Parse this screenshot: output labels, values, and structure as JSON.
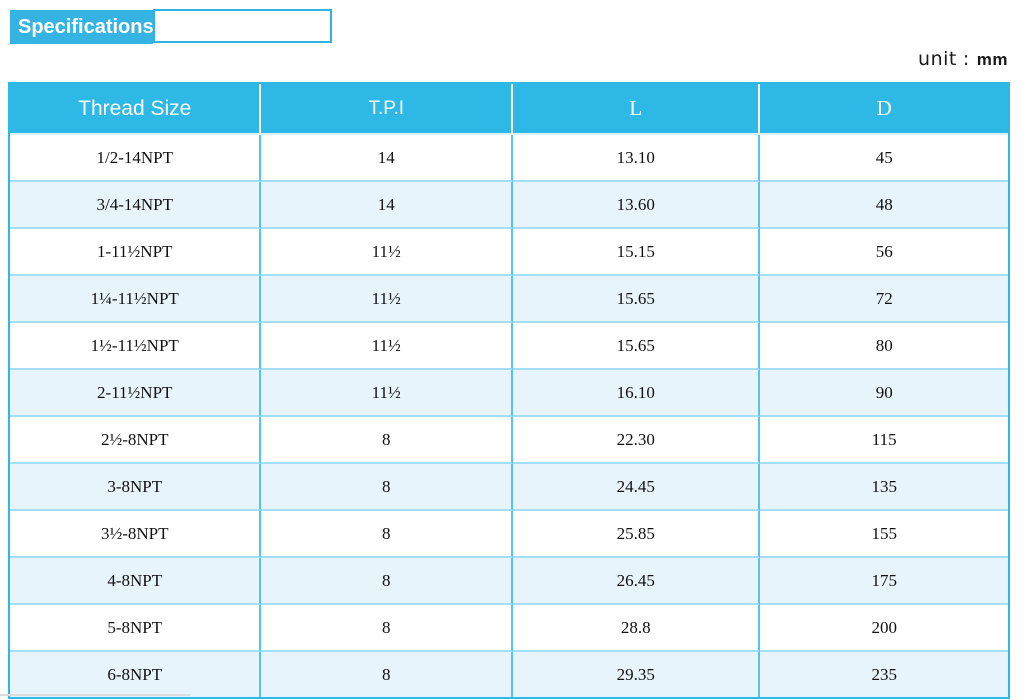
{
  "page": {
    "title": "Specifications",
    "unit_label": "unit",
    "unit_colon": ":",
    "unit_value": "mm"
  },
  "table": {
    "columns": [
      "Thread Size",
      "T.P.I",
      "L",
      "D"
    ],
    "rows": [
      [
        "1/2-14NPT",
        "14",
        "13.10",
        "45"
      ],
      [
        "3/4-14NPT",
        "14",
        "13.60",
        "48"
      ],
      [
        "1-11½NPT",
        "11½",
        "15.15",
        "56"
      ],
      [
        "1¼-11½NPT",
        "11½",
        "15.65",
        "72"
      ],
      [
        "1½-11½NPT",
        "11½",
        "15.65",
        "80"
      ],
      [
        "2-11½NPT",
        "11½",
        "16.10",
        "90"
      ],
      [
        "2½-8NPT",
        "8",
        "22.30",
        "115"
      ],
      [
        "3-8NPT",
        "8",
        "24.45",
        "135"
      ],
      [
        "3½-8NPT",
        "8",
        "25.85",
        "155"
      ],
      [
        "4-8NPT",
        "8",
        "26.45",
        "175"
      ],
      [
        "5-8NPT",
        "8",
        "28.8",
        "200"
      ],
      [
        "6-8NPT",
        "8",
        "29.35",
        "235"
      ]
    ]
  },
  "colors": {
    "header_bg": "#2eb8e6",
    "title_bg": "#35b4e4",
    "row_alt_bg": "#e7f4fb",
    "outer_border": "#2eb8e6",
    "vertical_border": "#53c6ed",
    "horizontal_border": "#a3def4"
  }
}
